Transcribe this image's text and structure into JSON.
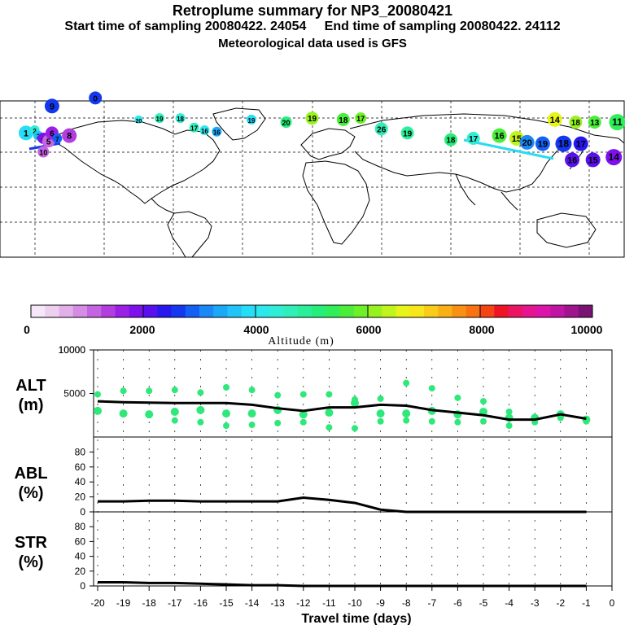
{
  "header": {
    "title": "Retroplume summary for NP3_20080421",
    "sub1": "Start time of sampling 20080422. 24054     End time of sampling 20080422. 24112",
    "sub2": "Meteorological data used is GFS"
  },
  "colorbar": {
    "title": "Altitude (m)",
    "labels": [
      "0",
      "2000",
      "4000",
      "6000",
      "8000",
      "10000"
    ],
    "colors": [
      "#f6e6f7",
      "#edd0f0",
      "#e1b0ea",
      "#d48ce4",
      "#c464e0",
      "#b23ee0",
      "#9a20e6",
      "#7d10ec",
      "#5a10ee",
      "#2818ee",
      "#1438f0",
      "#1460f4",
      "#1a88f6",
      "#1ca8f8",
      "#20c4f8",
      "#26dcf6",
      "#2ce8ec",
      "#30eed6",
      "#30eeb8",
      "#2aee98",
      "#26ee7a",
      "#30ee58",
      "#4aee3a",
      "#6ef028",
      "#98f220",
      "#c0f41c",
      "#e6f41a",
      "#f6e61a",
      "#f8cc18",
      "#f8b016",
      "#f89014",
      "#f87212",
      "#f44414",
      "#ee1424",
      "#ea1462",
      "#e6148e",
      "#dc14aa",
      "#c214a4",
      "#a0148e",
      "#7a1474"
    ]
  },
  "chart_data": [
    {
      "type": "line",
      "panel": "ALT",
      "ylabel": [
        "ALT",
        "(m)"
      ],
      "ytick_labels": [
        "5000",
        "10000"
      ],
      "ylim": [
        0,
        10000
      ],
      "x": [
        -20,
        -19,
        -18,
        -17,
        -16,
        -15,
        -14,
        -13,
        -12,
        -11,
        -10,
        -9,
        -8,
        -7,
        -6,
        -5,
        -4,
        -3,
        -2,
        -1
      ],
      "median": [
        4100,
        4000,
        3950,
        3900,
        3900,
        3900,
        3700,
        3300,
        3000,
        3400,
        3400,
        3700,
        3600,
        3100,
        2800,
        2500,
        2000,
        2000,
        2600,
        2100
      ],
      "upper_dots": [
        4900,
        5300,
        5300,
        5400,
        5100,
        5700,
        5400,
        4800,
        4900,
        4900,
        4300,
        4400,
        6200,
        5600,
        4500,
        4100,
        2900,
        null,
        null,
        null
      ],
      "middle_dots": [
        3000,
        2700,
        2600,
        2900,
        3100,
        2700,
        2700,
        3100,
        2600,
        2800,
        3900,
        2700,
        2700,
        3000,
        2600,
        2900,
        2200,
        2200,
        2600,
        2000
      ],
      "lower_dots": [
        null,
        null,
        null,
        1900,
        1700,
        1300,
        1400,
        1600,
        1700,
        1100,
        1000,
        1800,
        1900,
        1800,
        1700,
        1800,
        1300,
        1700,
        2200,
        1800
      ],
      "dot_color": "#2ee87a"
    },
    {
      "type": "line",
      "panel": "ABL",
      "ylabel": [
        "ABL",
        "(%)"
      ],
      "ytick_labels": [
        "0",
        "20",
        "40",
        "60",
        "80"
      ],
      "ylim": [
        0,
        100
      ],
      "x": [
        -20,
        -19,
        -18,
        -17,
        -16,
        -15,
        -14,
        -13,
        -12,
        -11,
        -10,
        -9,
        -8,
        -7,
        -6,
        -5,
        -4,
        -3,
        -2,
        -1
      ],
      "values": [
        14,
        14,
        15,
        15,
        14,
        14,
        14,
        14,
        19,
        16,
        12,
        3,
        0,
        0,
        0,
        0,
        0,
        0,
        0,
        0
      ]
    },
    {
      "type": "line",
      "panel": "STR",
      "ylabel": [
        "STR",
        "(%)"
      ],
      "ytick_labels": [
        "0",
        "20",
        "40",
        "60",
        "80"
      ],
      "ylim": [
        0,
        100
      ],
      "x": [
        -20,
        -19,
        -18,
        -17,
        -16,
        -15,
        -14,
        -13,
        -12,
        -11,
        -10,
        -9,
        -8,
        -7,
        -6,
        -5,
        -4,
        -3,
        -2,
        -1
      ],
      "values": [
        5,
        5,
        4,
        4,
        3,
        2,
        1,
        1,
        0,
        0,
        0,
        0,
        0,
        0,
        0,
        0,
        0,
        0,
        0,
        0
      ],
      "xlabel": "Travel time (days)",
      "xtick_labels": [
        "-20",
        "-19",
        "-18",
        "-17",
        "-16",
        "-15",
        "-14",
        "-13",
        "-12",
        "-11",
        "-10",
        "-9",
        "-8",
        "-7",
        "-6",
        "-5",
        "-4",
        "-3",
        "-2",
        "-1",
        "0"
      ]
    }
  ],
  "map": {
    "plume_points": [
      {
        "lon": -165,
        "lat": 42,
        "label": "1",
        "color": "#26dcf6",
        "size": 9
      },
      {
        "lon": -160,
        "lat": 44,
        "label": "2",
        "color": "#30eed6",
        "size": 6
      },
      {
        "lon": -158,
        "lat": 40,
        "label": "3",
        "color": "#20c4f8",
        "size": 6
      },
      {
        "lon": -155,
        "lat": 38,
        "label": "4",
        "color": "#7d10ec",
        "size": 7
      },
      {
        "lon": -152,
        "lat": 36,
        "label": "5",
        "color": "#c464e0",
        "size": 8
      },
      {
        "lon": -150,
        "lat": 42,
        "label": "6",
        "color": "#9a20e6",
        "size": 8
      },
      {
        "lon": -147,
        "lat": 38,
        "label": "7",
        "color": "#1460f4",
        "size": 6
      },
      {
        "lon": -140,
        "lat": 40,
        "label": "8",
        "color": "#b23ee0",
        "size": 9
      },
      {
        "lon": -150,
        "lat": 62,
        "label": "9",
        "color": "#1438f0",
        "size": 9
      },
      {
        "lon": -125,
        "lat": 68,
        "label": "0",
        "color": "#1438f0",
        "size": 8
      },
      {
        "lon": -155,
        "lat": 28,
        "label": "10",
        "color": "#c464e0",
        "size": 7
      },
      {
        "lon": -100,
        "lat": 52,
        "label": "20",
        "color": "#2ce8ec",
        "size": 5
      },
      {
        "lon": -88,
        "lat": 53,
        "label": "19",
        "color": "#30eeb8",
        "size": 6
      },
      {
        "lon": -76,
        "lat": 53,
        "label": "18",
        "color": "#30eed6",
        "size": 6
      },
      {
        "lon": -68,
        "lat": 46,
        "label": "17",
        "color": "#30eeb8",
        "size": 6
      },
      {
        "lon": -62,
        "lat": 44,
        "label": "16",
        "color": "#2ce8ec",
        "size": 6
      },
      {
        "lon": -55,
        "lat": 43,
        "label": "16",
        "color": "#1ca8f8",
        "size": 6
      },
      {
        "lon": -35,
        "lat": 52,
        "label": "19",
        "color": "#26dcf6",
        "size": 6
      },
      {
        "lon": -15,
        "lat": 50,
        "label": "20",
        "color": "#26ee7a",
        "size": 7
      },
      {
        "lon": 0,
        "lat": 53,
        "label": "19",
        "color": "#98f220",
        "size": 8
      },
      {
        "lon": 18,
        "lat": 52,
        "label": "18",
        "color": "#4aee3a",
        "size": 8
      },
      {
        "lon": 28,
        "lat": 53,
        "label": "17",
        "color": "#6ef028",
        "size": 7
      },
      {
        "lon": 40,
        "lat": 45,
        "label": "26",
        "color": "#30eeb8",
        "size": 8
      },
      {
        "lon": 55,
        "lat": 42,
        "label": "19",
        "color": "#2aee98",
        "size": 8
      },
      {
        "lon": 80,
        "lat": 37,
        "label": "18",
        "color": "#26ee7a",
        "size": 8
      },
      {
        "lon": 93,
        "lat": 38,
        "label": "17",
        "color": "#30eed6",
        "size": 8
      },
      {
        "lon": 108,
        "lat": 40,
        "label": "16",
        "color": "#4aee3a",
        "size": 9
      },
      {
        "lon": 118,
        "lat": 38,
        "label": "15",
        "color": "#c0f41c",
        "size": 9
      },
      {
        "lon": 124,
        "lat": 35,
        "label": "20",
        "color": "#1a88f6",
        "size": 9
      },
      {
        "lon": 133,
        "lat": 34,
        "label": "19",
        "color": "#1460f4",
        "size": 9
      },
      {
        "lon": 145,
        "lat": 34,
        "label": "18",
        "color": "#1438f0",
        "size": 10
      },
      {
        "lon": 155,
        "lat": 34,
        "label": "17",
        "color": "#2818ee",
        "size": 9
      },
      {
        "lon": 140,
        "lat": 52,
        "label": "14",
        "color": "#e6f41a",
        "size": 9
      },
      {
        "lon": 152,
        "lat": 50,
        "label": "18",
        "color": "#98f220",
        "size": 8
      },
      {
        "lon": 163,
        "lat": 50,
        "label": "13",
        "color": "#4aee3a",
        "size": 8
      },
      {
        "lon": 176,
        "lat": 50,
        "label": "11",
        "color": "#30ee58",
        "size": 10
      },
      {
        "lon": 150,
        "lat": 22,
        "label": "16",
        "color": "#5a10ee",
        "size": 9
      },
      {
        "lon": 162,
        "lat": 22,
        "label": "15",
        "color": "#5a10ee",
        "size": 9
      },
      {
        "lon": 174,
        "lat": 24,
        "label": "14",
        "color": "#7d10ec",
        "size": 10
      }
    ]
  }
}
